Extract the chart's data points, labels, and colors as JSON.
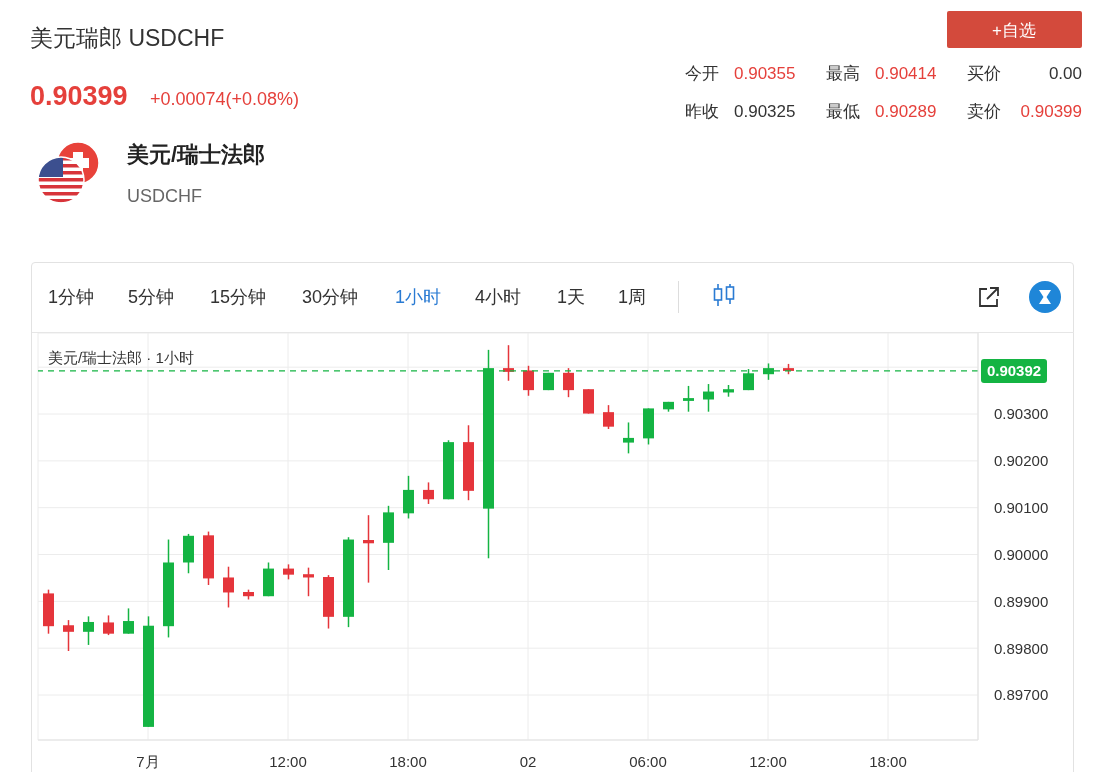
{
  "chart_data": {
    "type": "candlestick",
    "title": "美元瑞郎 USDCHF",
    "subtitle": "美元/瑞士法郎 · 1小时",
    "annotations": [
      "0.90399",
      "+0.00074(+0.08%)",
      "今开",
      "0.90355",
      "最高",
      "0.90414",
      "买价",
      "0.00",
      "昨收",
      "0.90325",
      "最低",
      "0.90289",
      "卖价",
      "0.90399",
      "美元/瑞士法郎",
      "USDCHF",
      "+自选",
      "1分钟",
      "5分钟",
      "15分钟",
      "30分钟",
      "1小时",
      "4小时",
      "1天",
      "1周"
    ],
    "categories": [
      null,
      null,
      null,
      null,
      null,
      "7月",
      null,
      null,
      null,
      null,
      null,
      null,
      "12:00",
      null,
      null,
      null,
      null,
      null,
      "18:00",
      null,
      null,
      null,
      null,
      null,
      "02",
      null,
      null,
      null,
      null,
      null,
      "06:00",
      null,
      null,
      null,
      null,
      null,
      "12:00",
      null,
      null,
      null,
      null,
      null,
      "18:00",
      null,
      null,
      null,
      null
    ],
    "ohlc": [
      [
        0.89917,
        0.89925,
        0.89831,
        0.89847
      ],
      [
        0.89849,
        0.8986,
        0.89794,
        0.89835
      ],
      [
        0.89835,
        0.89868,
        0.89807,
        0.89856
      ],
      [
        0.89855,
        0.8987,
        0.89828,
        0.89831
      ],
      [
        0.89831,
        0.89885,
        0.89831,
        0.89858
      ],
      [
        0.89632,
        0.89868,
        0.89632,
        0.89848
      ],
      [
        0.89847,
        0.90032,
        0.89823,
        0.89983
      ],
      [
        0.89983,
        0.90044,
        0.8996,
        0.9004
      ],
      [
        0.90041,
        0.90049,
        0.89935,
        0.89949
      ],
      [
        0.89951,
        0.89974,
        0.89887,
        0.89919
      ],
      [
        0.8992,
        0.89925,
        0.89904,
        0.89911
      ],
      [
        0.89911,
        0.89983,
        0.89911,
        0.8997
      ],
      [
        0.8997,
        0.89979,
        0.89947,
        0.89957
      ],
      [
        0.89958,
        0.89972,
        0.89911,
        0.89951
      ],
      [
        0.89952,
        0.89956,
        0.89842,
        0.89867
      ],
      [
        0.89867,
        0.90037,
        0.89845,
        0.90032
      ],
      [
        0.90031,
        0.90084,
        0.8994,
        0.90024
      ],
      [
        0.90025,
        0.90104,
        0.89967,
        0.9009
      ],
      [
        0.90088,
        0.90168,
        0.90077,
        0.90138
      ],
      [
        0.90138,
        0.90154,
        0.90108,
        0.90118
      ],
      [
        0.90118,
        0.90244,
        0.90118,
        0.9024
      ],
      [
        0.9024,
        0.90276,
        0.90116,
        0.90136
      ],
      [
        0.90098,
        0.90437,
        0.89992,
        0.90398
      ],
      [
        0.90398,
        0.90447,
        0.90371,
        0.9039
      ],
      [
        0.90393,
        0.90403,
        0.90339,
        0.90351
      ],
      [
        0.90351,
        0.90388,
        0.90351,
        0.90388
      ],
      [
        0.90388,
        0.90398,
        0.90336,
        0.90351
      ],
      [
        0.90353,
        0.90353,
        0.90301,
        0.90301
      ],
      [
        0.90304,
        0.90319,
        0.90268,
        0.90273
      ],
      [
        0.90239,
        0.90282,
        0.90216,
        0.90249
      ],
      [
        0.90248,
        0.90312,
        0.90235,
        0.90312
      ],
      [
        0.9031,
        0.90326,
        0.90305,
        0.90326
      ],
      [
        0.90328,
        0.9036,
        0.90305,
        0.90334
      ],
      [
        0.90331,
        0.90364,
        0.90305,
        0.90348
      ],
      [
        0.90346,
        0.90362,
        0.90337,
        0.90353
      ],
      [
        0.90351,
        0.90396,
        0.90351,
        0.90387
      ],
      [
        0.90385,
        0.90408,
        0.90373,
        0.90398
      ],
      [
        0.90398,
        0.90407,
        0.90385,
        0.90392
      ],
      null,
      null,
      null,
      null,
      null,
      null,
      null,
      null,
      null
    ],
    "colors": [
      "#e5353b",
      "#e5353b",
      "#14b443",
      "#e5353b",
      "#14b443",
      "#14b443",
      "#14b443",
      "#14b443",
      "#e5353b",
      "#e5353b",
      "#e5353b",
      "#14b443",
      "#e5353b",
      "#e5353b",
      "#e5353b",
      "#14b443",
      "#e5353b",
      "#14b443",
      "#14b443",
      "#e5353b",
      "#14b443",
      "#e5353b",
      "#14b443",
      "#e5353b",
      "#e5353b",
      "#14b443",
      "#e5353b",
      "#e5353b",
      "#e5353b",
      "#14b443",
      "#14b443",
      "#14b443",
      "#14b443",
      "#14b443",
      "#14b443",
      "#14b443",
      "#14b443",
      "#e5353b",
      null,
      null,
      null,
      null,
      null,
      null,
      null,
      null,
      null
    ],
    "ylim": [
      0.89604,
      0.90473
    ],
    "yticks": [
      {
        "value": 0.897,
        "label": "0.89700"
      },
      {
        "value": 0.898,
        "label": "0.89800"
      },
      {
        "value": 0.899,
        "label": "0.89900"
      },
      {
        "value": 0.9,
        "label": "0.90000"
      },
      {
        "value": 0.901,
        "label": "0.90100"
      },
      {
        "value": 0.902,
        "label": "0.90200"
      },
      {
        "value": 0.903,
        "label": "0.90300"
      },
      {
        "value": 0.904,
        "label": null
      }
    ],
    "ref_lines": [
      {
        "axis": "y",
        "value": 0.90392,
        "label": "0.90392",
        "color": "#14b443",
        "line_style": "dashed"
      }
    ],
    "grid": true
  }
}
